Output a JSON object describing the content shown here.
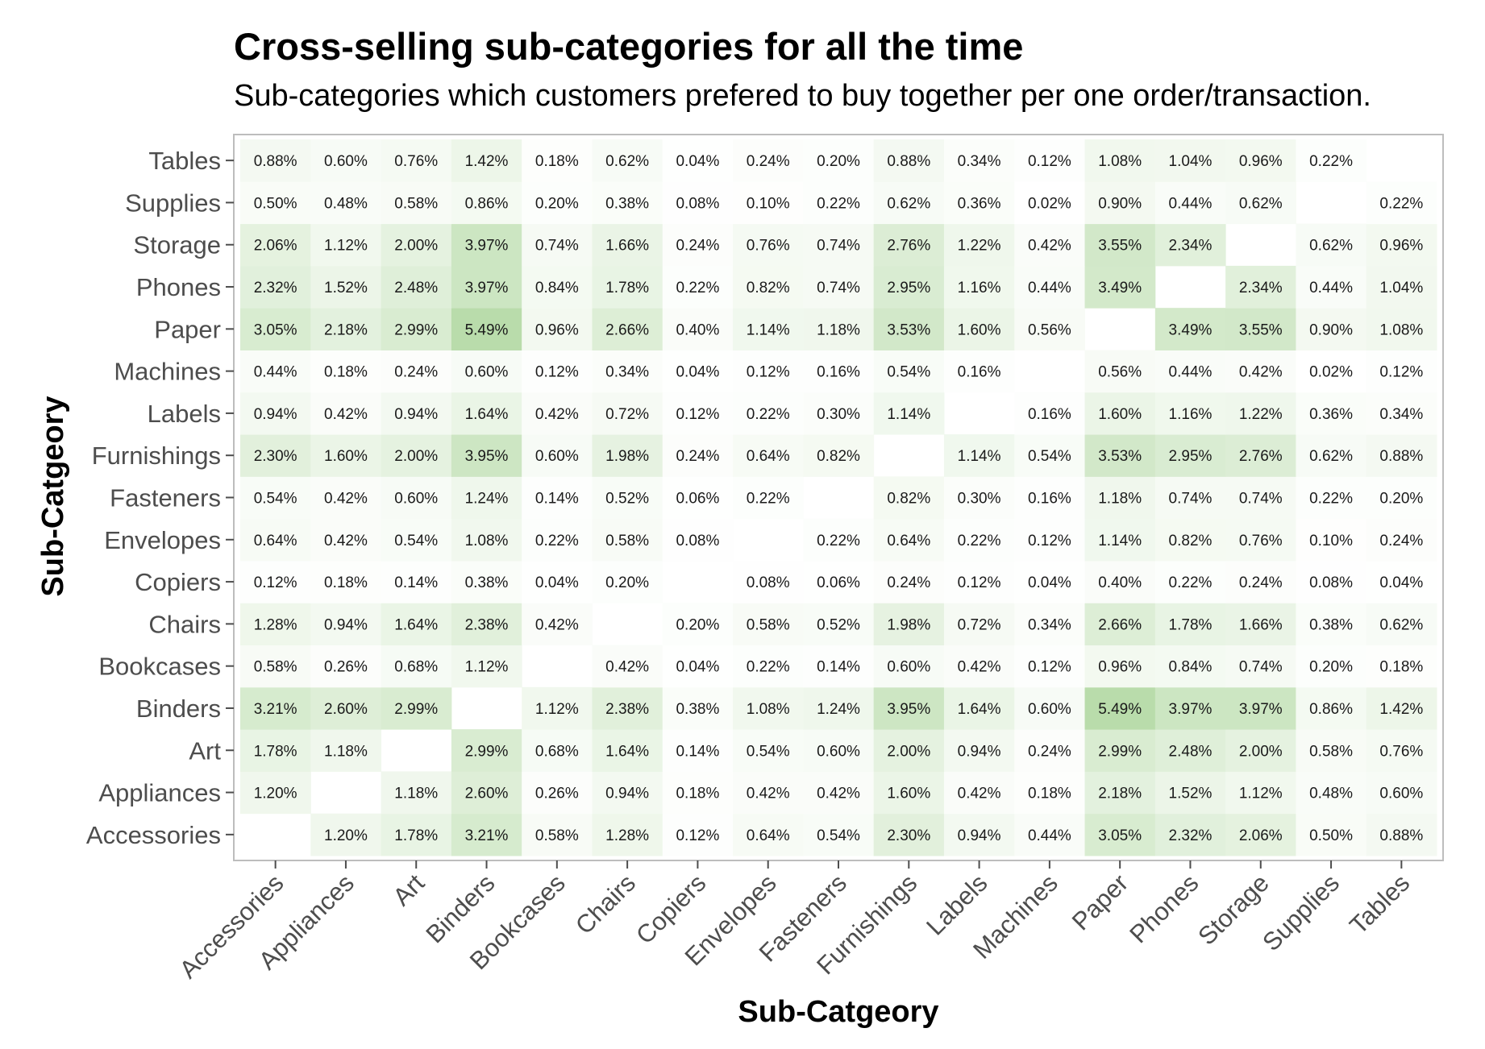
{
  "chart_data": {
    "type": "heatmap",
    "title": "Cross-selling sub-categories for all the time",
    "subtitle": "Sub-categories which customers prefered to buy together per one order/transaction.",
    "xlabel": "Sub-Catgeory",
    "ylabel": "Sub-Catgeory",
    "grid": false,
    "legend": "none",
    "x_categories": [
      "Accessories",
      "Appliances",
      "Art",
      "Binders",
      "Bookcases",
      "Chairs",
      "Copiers",
      "Envelopes",
      "Fasteners",
      "Furnishings",
      "Labels",
      "Machines",
      "Paper",
      "Phones",
      "Storage",
      "Supplies",
      "Tables"
    ],
    "y_categories": [
      "Accessories",
      "Appliances",
      "Art",
      "Binders",
      "Bookcases",
      "Chairs",
      "Copiers",
      "Envelopes",
      "Fasteners",
      "Furnishings",
      "Labels",
      "Machines",
      "Paper",
      "Phones",
      "Storage",
      "Supplies",
      "Tables"
    ],
    "value_format": "percent",
    "values": [
      [
        null,
        1.2,
        1.78,
        3.21,
        0.58,
        1.28,
        0.12,
        0.64,
        0.54,
        2.3,
        0.94,
        0.44,
        3.05,
        2.32,
        2.06,
        0.5,
        0.88
      ],
      [
        1.2,
        null,
        1.18,
        2.6,
        0.26,
        0.94,
        0.18,
        0.42,
        0.42,
        1.6,
        0.42,
        0.18,
        2.18,
        1.52,
        1.12,
        0.48,
        0.6
      ],
      [
        1.78,
        1.18,
        null,
        2.99,
        0.68,
        1.64,
        0.14,
        0.54,
        0.6,
        2.0,
        0.94,
        0.24,
        2.99,
        2.48,
        2.0,
        0.58,
        0.76
      ],
      [
        3.21,
        2.6,
        2.99,
        null,
        1.12,
        2.38,
        0.38,
        1.08,
        1.24,
        3.95,
        1.64,
        0.6,
        5.49,
        3.97,
        3.97,
        0.86,
        1.42
      ],
      [
        0.58,
        0.26,
        0.68,
        1.12,
        null,
        0.42,
        0.04,
        0.22,
        0.14,
        0.6,
        0.42,
        0.12,
        0.96,
        0.84,
        0.74,
        0.2,
        0.18
      ],
      [
        1.28,
        0.94,
        1.64,
        2.38,
        0.42,
        null,
        0.2,
        0.58,
        0.52,
        1.98,
        0.72,
        0.34,
        2.66,
        1.78,
        1.66,
        0.38,
        0.62
      ],
      [
        0.12,
        0.18,
        0.14,
        0.38,
        0.04,
        0.2,
        null,
        0.08,
        0.06,
        0.24,
        0.12,
        0.04,
        0.4,
        0.22,
        0.24,
        0.08,
        0.04
      ],
      [
        0.64,
        0.42,
        0.54,
        1.08,
        0.22,
        0.58,
        0.08,
        null,
        0.22,
        0.64,
        0.22,
        0.12,
        1.14,
        0.82,
        0.76,
        0.1,
        0.24
      ],
      [
        0.54,
        0.42,
        0.6,
        1.24,
        0.14,
        0.52,
        0.06,
        0.22,
        null,
        0.82,
        0.3,
        0.16,
        1.18,
        0.74,
        0.74,
        0.22,
        0.2
      ],
      [
        2.3,
        1.6,
        2.0,
        3.95,
        0.6,
        1.98,
        0.24,
        0.64,
        0.82,
        null,
        1.14,
        0.54,
        3.53,
        2.95,
        2.76,
        0.62,
        0.88
      ],
      [
        0.94,
        0.42,
        0.94,
        1.64,
        0.42,
        0.72,
        0.12,
        0.22,
        0.3,
        1.14,
        null,
        0.16,
        1.6,
        1.16,
        1.22,
        0.36,
        0.34
      ],
      [
        0.44,
        0.18,
        0.24,
        0.6,
        0.12,
        0.34,
        0.04,
        0.12,
        0.16,
        0.54,
        0.16,
        null,
        0.56,
        0.44,
        0.42,
        0.02,
        0.12
      ],
      [
        3.05,
        2.18,
        2.99,
        5.49,
        0.96,
        2.66,
        0.4,
        1.14,
        1.18,
        3.53,
        1.6,
        0.56,
        null,
        3.49,
        3.55,
        0.9,
        1.08
      ],
      [
        2.32,
        1.52,
        2.48,
        3.97,
        0.84,
        1.78,
        0.22,
        0.82,
        0.74,
        2.95,
        1.16,
        0.44,
        3.49,
        null,
        2.34,
        0.44,
        1.04
      ],
      [
        2.06,
        1.12,
        2.0,
        3.97,
        0.74,
        1.66,
        0.24,
        0.76,
        0.74,
        2.76,
        1.22,
        0.42,
        3.55,
        2.34,
        null,
        0.62,
        0.96
      ],
      [
        0.5,
        0.48,
        0.58,
        0.86,
        0.2,
        0.38,
        0.08,
        0.1,
        0.22,
        0.62,
        0.36,
        0.02,
        0.9,
        0.44,
        0.62,
        null,
        0.22
      ],
      [
        0.88,
        0.6,
        0.76,
        1.42,
        0.18,
        0.62,
        0.04,
        0.24,
        0.2,
        0.88,
        0.34,
        0.12,
        1.08,
        1.04,
        0.96,
        0.22,
        null
      ]
    ],
    "color_low": "#ffffff",
    "color_high": "#b9dcab",
    "panel_border_color": "#bdbdbd",
    "axis_text_color": "#4d4d4d",
    "cell_text_color": "#1a1a1a"
  }
}
